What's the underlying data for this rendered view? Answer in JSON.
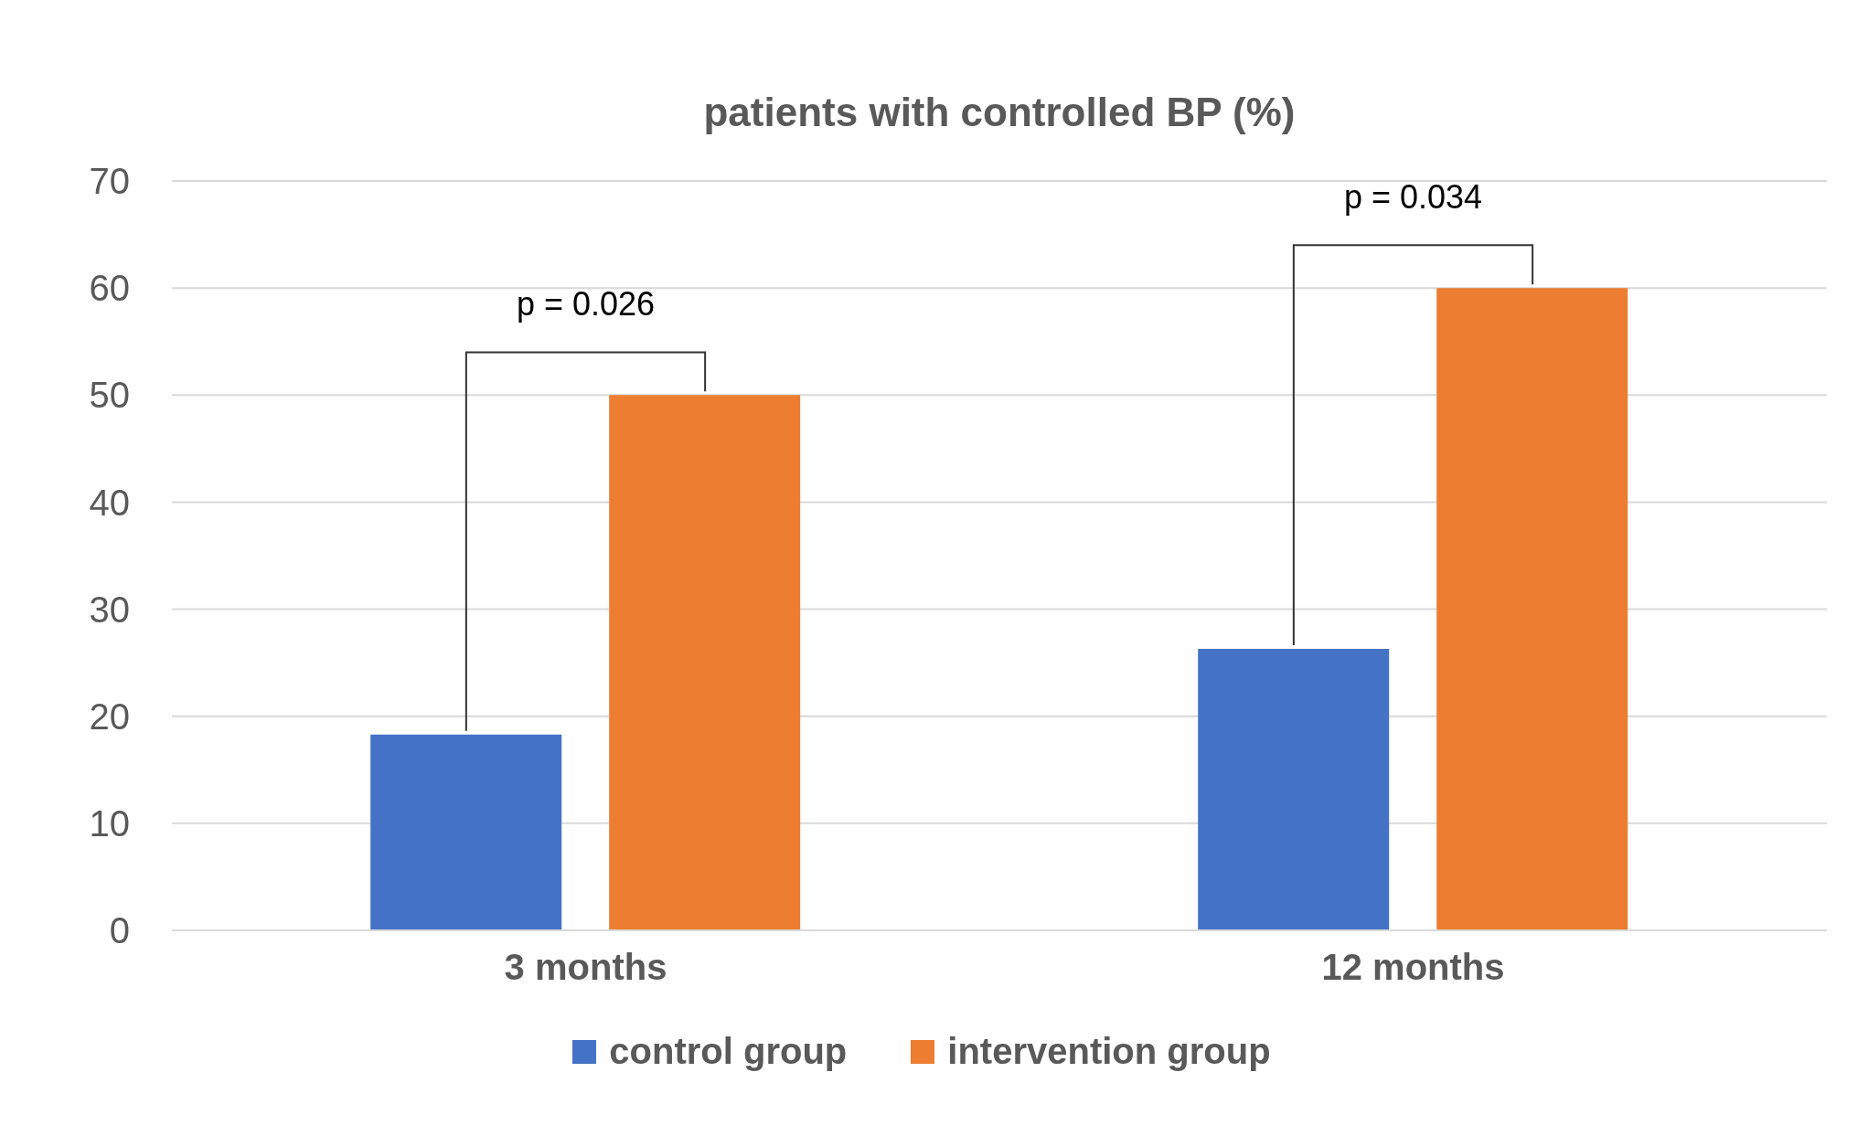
{
  "chart_data": {
    "type": "bar",
    "title": "patients with controlled BP (%)",
    "categories": [
      "3 months",
      "12 months"
    ],
    "series": [
      {
        "name": "control group",
        "color": "#4472c4",
        "values": [
          18.3,
          26.3
        ]
      },
      {
        "name": "intervention group",
        "color": "#ed7d31",
        "values": [
          50,
          60
        ]
      }
    ],
    "ylim": [
      0,
      70
    ],
    "yticks": [
      0,
      10,
      20,
      30,
      40,
      50,
      60,
      70
    ],
    "grid": "y",
    "legend": "bottom",
    "annotations": [
      "p = 0.026",
      "p = 0.034"
    ]
  }
}
